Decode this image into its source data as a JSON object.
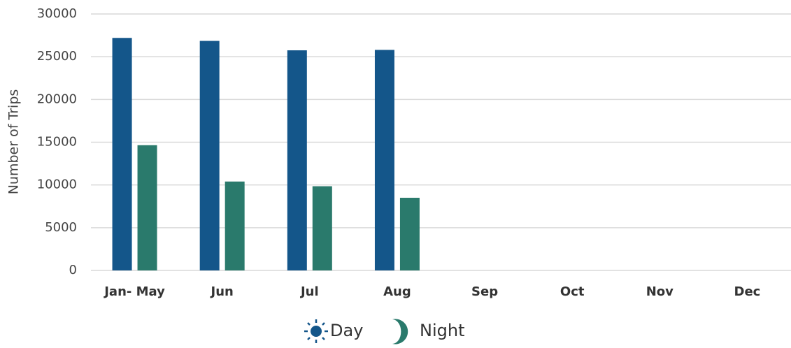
{
  "chart_data": {
    "type": "bar",
    "y_label": "Number of Trips",
    "categories": [
      "Jan- May",
      "Jun",
      "Jul",
      "Aug",
      "Sep",
      "Oct",
      "Nov",
      "Dec"
    ],
    "series": [
      {
        "name": "Day",
        "color": "#14568a",
        "values": [
          27200,
          26850,
          25750,
          25800,
          null,
          null,
          null,
          null
        ]
      },
      {
        "name": "Night",
        "color": "#2a7a6c",
        "values": [
          14650,
          10400,
          9850,
          8500,
          null,
          null,
          null,
          null
        ]
      }
    ],
    "ylim": [
      0,
      30000
    ],
    "yticks": [
      0,
      5000,
      10000,
      15000,
      20000,
      25000,
      30000
    ],
    "grid": true
  }
}
